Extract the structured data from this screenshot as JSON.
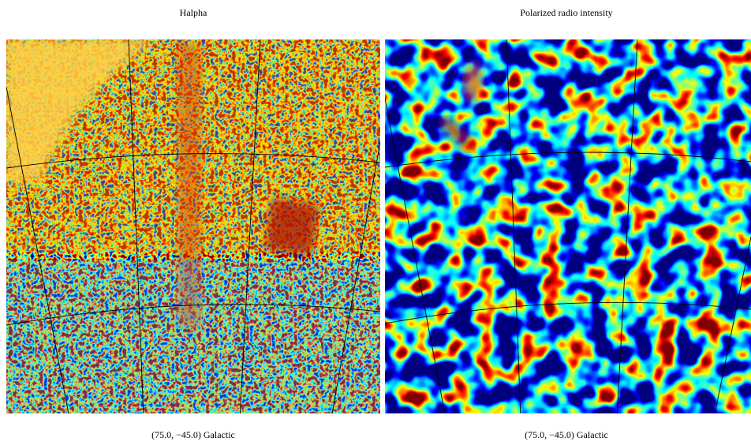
{
  "panels": [
    {
      "title": "Halpha",
      "caption": "(75.0, −45.0) Galactic"
    },
    {
      "title": "Polarized radio intensity",
      "caption": "(75.0, −45.0) Galactic"
    }
  ]
}
